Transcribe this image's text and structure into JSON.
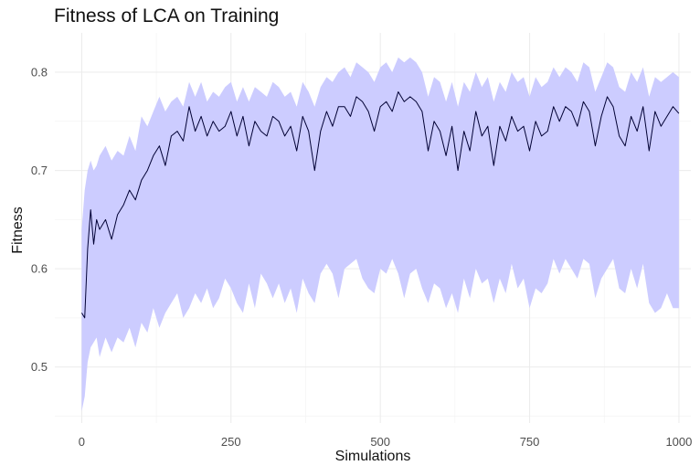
{
  "chart_data": {
    "type": "line",
    "title": "Fitness of LCA on Training",
    "xlabel": "Simulations",
    "ylabel": "Fitness",
    "xlim": [
      -45,
      1020
    ],
    "ylim": [
      0.443,
      0.84
    ],
    "x_ticks": [
      0,
      250,
      500,
      750,
      1000
    ],
    "x_tick_labels": [
      "0",
      "250",
      "500",
      "750",
      "1000"
    ],
    "y_ticks": [
      0.5,
      0.6,
      0.7,
      0.8
    ],
    "y_tick_labels": [
      "0.5",
      "0.6",
      "0.7",
      "0.8"
    ],
    "grid": true,
    "legend": "none",
    "series": [
      {
        "kind": "line",
        "color": "#000033",
        "x": [
          0,
          5,
          10,
          15,
          20,
          25,
          30,
          40,
          50,
          60,
          70,
          80,
          90,
          100,
          110,
          120,
          130,
          140,
          150,
          160,
          170,
          180,
          190,
          200,
          210,
          220,
          230,
          240,
          250,
          260,
          270,
          280,
          290,
          300,
          310,
          320,
          330,
          340,
          350,
          360,
          370,
          380,
          390,
          400,
          410,
          420,
          430,
          440,
          450,
          460,
          470,
          480,
          490,
          500,
          510,
          520,
          530,
          540,
          550,
          560,
          570,
          580,
          590,
          600,
          610,
          620,
          630,
          640,
          650,
          660,
          670,
          680,
          690,
          700,
          710,
          720,
          730,
          740,
          750,
          760,
          770,
          780,
          790,
          800,
          810,
          820,
          830,
          840,
          850,
          860,
          870,
          880,
          890,
          900,
          910,
          920,
          930,
          940,
          950,
          960,
          970,
          980,
          990,
          1000
        ],
        "y": [
          0.555,
          0.55,
          0.62,
          0.66,
          0.625,
          0.65,
          0.64,
          0.65,
          0.63,
          0.655,
          0.665,
          0.68,
          0.67,
          0.69,
          0.7,
          0.715,
          0.725,
          0.705,
          0.735,
          0.74,
          0.73,
          0.765,
          0.74,
          0.755,
          0.735,
          0.75,
          0.74,
          0.745,
          0.76,
          0.735,
          0.755,
          0.725,
          0.75,
          0.74,
          0.735,
          0.755,
          0.75,
          0.735,
          0.745,
          0.72,
          0.755,
          0.74,
          0.7,
          0.74,
          0.76,
          0.745,
          0.765,
          0.765,
          0.755,
          0.775,
          0.77,
          0.76,
          0.74,
          0.765,
          0.77,
          0.76,
          0.78,
          0.77,
          0.775,
          0.77,
          0.76,
          0.72,
          0.75,
          0.74,
          0.715,
          0.745,
          0.7,
          0.74,
          0.72,
          0.76,
          0.735,
          0.745,
          0.705,
          0.745,
          0.73,
          0.755,
          0.74,
          0.745,
          0.72,
          0.75,
          0.735,
          0.74,
          0.765,
          0.75,
          0.765,
          0.76,
          0.745,
          0.77,
          0.76,
          0.725,
          0.755,
          0.775,
          0.765,
          0.735,
          0.725,
          0.755,
          0.74,
          0.765,
          0.72,
          0.76,
          0.745,
          0.755,
          0.765,
          0.758
        ]
      },
      {
        "kind": "band",
        "color": "#ccccff",
        "x": [
          0,
          5,
          10,
          15,
          20,
          25,
          30,
          40,
          50,
          60,
          70,
          80,
          90,
          100,
          110,
          120,
          130,
          140,
          150,
          160,
          170,
          180,
          190,
          200,
          210,
          220,
          230,
          240,
          250,
          260,
          270,
          280,
          290,
          300,
          310,
          320,
          330,
          340,
          350,
          360,
          370,
          380,
          390,
          400,
          410,
          420,
          430,
          440,
          450,
          460,
          470,
          480,
          490,
          500,
          510,
          520,
          530,
          540,
          550,
          560,
          570,
          580,
          590,
          600,
          610,
          620,
          630,
          640,
          650,
          660,
          670,
          680,
          690,
          700,
          710,
          720,
          730,
          740,
          750,
          760,
          770,
          780,
          790,
          800,
          810,
          820,
          830,
          840,
          850,
          860,
          870,
          880,
          890,
          900,
          910,
          920,
          930,
          940,
          950,
          960,
          970,
          980,
          990,
          1000
        ],
        "lower": [
          0.455,
          0.47,
          0.505,
          0.52,
          0.525,
          0.53,
          0.51,
          0.53,
          0.515,
          0.53,
          0.525,
          0.54,
          0.52,
          0.545,
          0.535,
          0.56,
          0.54,
          0.555,
          0.565,
          0.575,
          0.55,
          0.56,
          0.575,
          0.565,
          0.58,
          0.56,
          0.57,
          0.59,
          0.58,
          0.565,
          0.555,
          0.585,
          0.56,
          0.595,
          0.585,
          0.57,
          0.585,
          0.565,
          0.58,
          0.555,
          0.59,
          0.575,
          0.565,
          0.595,
          0.605,
          0.595,
          0.57,
          0.6,
          0.605,
          0.61,
          0.59,
          0.58,
          0.575,
          0.6,
          0.595,
          0.61,
          0.595,
          0.57,
          0.595,
          0.6,
          0.58,
          0.565,
          0.585,
          0.58,
          0.56,
          0.575,
          0.555,
          0.59,
          0.57,
          0.6,
          0.585,
          0.59,
          0.565,
          0.59,
          0.575,
          0.605,
          0.58,
          0.59,
          0.56,
          0.58,
          0.575,
          0.585,
          0.61,
          0.595,
          0.61,
          0.6,
          0.59,
          0.61,
          0.605,
          0.57,
          0.59,
          0.6,
          0.61,
          0.58,
          0.575,
          0.6,
          0.58,
          0.605,
          0.565,
          0.555,
          0.56,
          0.575,
          0.56,
          0.56
        ],
        "upper": [
          0.64,
          0.68,
          0.7,
          0.71,
          0.7,
          0.705,
          0.715,
          0.725,
          0.71,
          0.72,
          0.715,
          0.735,
          0.72,
          0.755,
          0.745,
          0.76,
          0.775,
          0.76,
          0.77,
          0.775,
          0.765,
          0.79,
          0.775,
          0.79,
          0.77,
          0.78,
          0.775,
          0.785,
          0.79,
          0.77,
          0.785,
          0.77,
          0.785,
          0.78,
          0.775,
          0.79,
          0.785,
          0.775,
          0.78,
          0.765,
          0.79,
          0.78,
          0.765,
          0.785,
          0.795,
          0.79,
          0.8,
          0.805,
          0.795,
          0.81,
          0.805,
          0.8,
          0.79,
          0.805,
          0.81,
          0.8,
          0.815,
          0.81,
          0.815,
          0.81,
          0.8,
          0.775,
          0.795,
          0.79,
          0.77,
          0.79,
          0.765,
          0.79,
          0.78,
          0.8,
          0.785,
          0.795,
          0.77,
          0.79,
          0.78,
          0.8,
          0.79,
          0.795,
          0.775,
          0.795,
          0.785,
          0.79,
          0.805,
          0.795,
          0.805,
          0.8,
          0.79,
          0.81,
          0.805,
          0.78,
          0.795,
          0.81,
          0.805,
          0.785,
          0.78,
          0.8,
          0.79,
          0.805,
          0.775,
          0.795,
          0.79,
          0.795,
          0.8,
          0.795
        ]
      }
    ]
  }
}
